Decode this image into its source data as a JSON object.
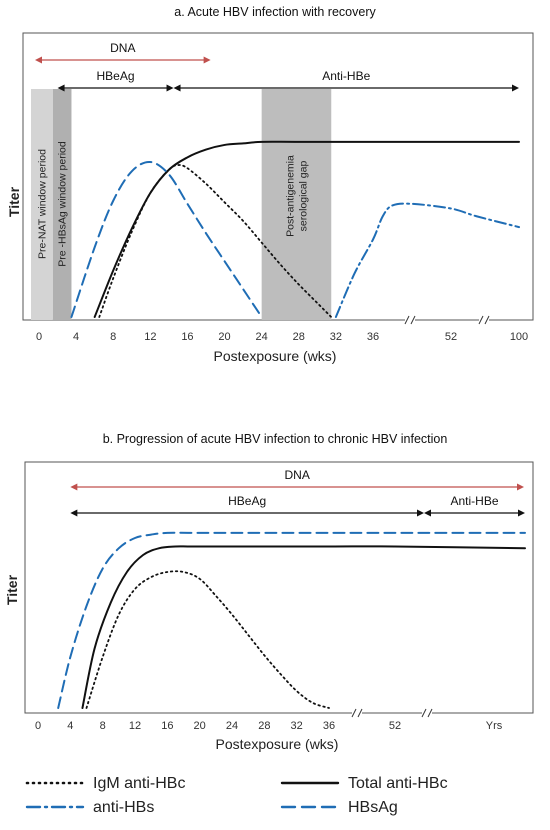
{
  "colors": {
    "dna_arrow": "#c0504d",
    "blue": "#1f6db5",
    "black": "#111111",
    "window_light": "#d4d4d4",
    "window_dark": "#b0b0b0",
    "gap_shade": "#bdbdbd"
  },
  "chart_data": [
    {
      "panel": "a",
      "type": "line",
      "title": "a.  Acute HBV infection with recovery",
      "xlabel": "Postexposure (wks)",
      "ylabel": "Titer",
      "x_ticks": [
        "0",
        "4",
        "8",
        "12",
        "16",
        "20",
        "24",
        "28",
        "32",
        "36",
        "52",
        "100"
      ],
      "axis_breaks": [
        "between 36 and 52",
        "between 52 and 100"
      ],
      "spans": [
        {
          "label": "DNA",
          "from": -0.5,
          "to": 18.5,
          "color": "red"
        },
        {
          "label": "HBeAg",
          "from": 2,
          "to": 14.5,
          "color": "black"
        },
        {
          "label": "Anti-HBe",
          "from": 14.5,
          "to": 100,
          "color": "black"
        }
      ],
      "shaded_regions": [
        {
          "label": "Pre-NAT window period",
          "from": -1,
          "to": 1.5
        },
        {
          "label": "Pre -HBsAg window period",
          "from": 1.5,
          "to": 3.5
        },
        {
          "label": "Post-antigenemia serological gap",
          "from": 24,
          "to": 31.5
        }
      ],
      "series": [
        {
          "name": "IgM   anti-HBc",
          "style": "dotted",
          "color": "black",
          "x": [
            6.5,
            8,
            10,
            12,
            14,
            15,
            16,
            18,
            20,
            22,
            24,
            26,
            28,
            30,
            31.5
          ],
          "y": [
            0,
            0.25,
            0.55,
            0.8,
            0.95,
            0.98,
            0.96,
            0.86,
            0.74,
            0.62,
            0.48,
            0.34,
            0.21,
            0.09,
            0
          ]
        },
        {
          "name": "Total anti-HBc",
          "style": "solid",
          "color": "black",
          "x": [
            6,
            8,
            10,
            12,
            14,
            16,
            18,
            20,
            22,
            24,
            28,
            36,
            52,
            100
          ],
          "y": [
            0,
            0.3,
            0.57,
            0.8,
            0.95,
            1.03,
            1.08,
            1.11,
            1.12,
            1.13,
            1.13,
            1.13,
            1.13,
            1.13
          ]
        },
        {
          "name": "HBsAg",
          "style": "dashed",
          "color": "blue",
          "x": [
            3.5,
            6,
            8,
            10,
            12,
            14,
            16,
            18,
            20,
            22,
            24
          ],
          "y": [
            0,
            0.45,
            0.75,
            0.94,
            1.0,
            0.92,
            0.73,
            0.54,
            0.36,
            0.18,
            0
          ]
        },
        {
          "name": "anti-HBs",
          "style": "dashdot",
          "color": "blue",
          "x": [
            32,
            34,
            36,
            38,
            40,
            44,
            52,
            70,
            100
          ],
          "y": [
            0,
            0.28,
            0.5,
            0.65,
            0.72,
            0.73,
            0.7,
            0.65,
            0.58
          ]
        }
      ]
    },
    {
      "panel": "b",
      "type": "line",
      "title": "b.  Progression of acute HBV infection to chronic HBV infection",
      "xlabel": "Postexposure (wks)",
      "ylabel": "Titer",
      "x_ticks": [
        "0",
        "4",
        "8",
        "12",
        "16",
        "20",
        "24",
        "28",
        "32",
        "36",
        "52",
        "Yrs"
      ],
      "axis_breaks": [
        "between 36 and 52",
        "between 52 and Yrs"
      ],
      "spans": [
        {
          "label": "DNA",
          "from": 4,
          "to": "Yrs",
          "color": "red"
        },
        {
          "label": "HBeAg",
          "from": 4,
          "to": "between 52 and Yrs",
          "color": "black"
        },
        {
          "label": "Anti-HBe",
          "from": "between 52 and Yrs",
          "to": "Yrs",
          "color": "black"
        }
      ],
      "series": [
        {
          "name": "HBsAg",
          "style": "dashed",
          "color": "blue",
          "x": [
            2.5,
            4,
            6,
            8,
            10,
            12,
            14,
            16,
            20,
            24,
            36,
            52,
            "Yrs"
          ],
          "y": [
            0,
            0.3,
            0.6,
            0.82,
            0.94,
            1.0,
            1.02,
            1.03,
            1.03,
            1.03,
            1.03,
            1.03,
            1.03
          ]
        },
        {
          "name": "Total anti-HBc",
          "style": "solid",
          "color": "black",
          "x": [
            5.5,
            7,
            9,
            11,
            13,
            15,
            17,
            19,
            24,
            36,
            52,
            "Yrs"
          ],
          "y": [
            0,
            0.35,
            0.62,
            0.8,
            0.9,
            0.94,
            0.95,
            0.95,
            0.95,
            0.95,
            0.95,
            0.94
          ]
        },
        {
          "name": "IgM   anti-HBc",
          "style": "dotted",
          "color": "black",
          "x": [
            6,
            8,
            10,
            12,
            14,
            16,
            18,
            20,
            22,
            24,
            26,
            28,
            30,
            32,
            34,
            36
          ],
          "y": [
            0,
            0.3,
            0.55,
            0.7,
            0.77,
            0.8,
            0.8,
            0.76,
            0.66,
            0.55,
            0.43,
            0.31,
            0.2,
            0.1,
            0.03,
            0
          ]
        }
      ]
    }
  ],
  "legend": [
    {
      "label": "IgM   anti-HBc",
      "style": "dotted",
      "color": "black"
    },
    {
      "label": "Total anti-HBc",
      "style": "solid",
      "color": "black"
    },
    {
      "label": "anti-HBs",
      "style": "dashdot",
      "color": "blue"
    },
    {
      "label": "HBsAg",
      "style": "dashed",
      "color": "blue"
    }
  ]
}
